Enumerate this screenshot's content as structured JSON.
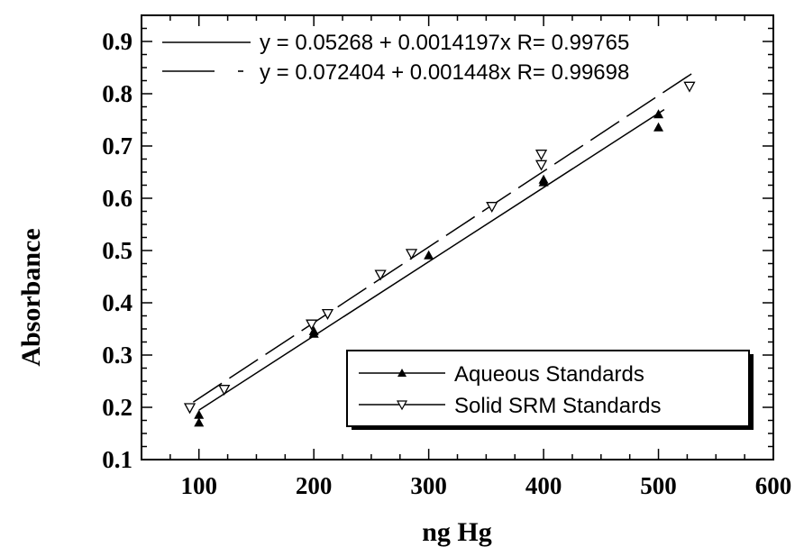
{
  "chart_data": {
    "type": "scatter",
    "xlabel": "ng Hg",
    "ylabel": "Absorbance",
    "xlim": [
      50,
      600
    ],
    "ylim": [
      0.1,
      0.95
    ],
    "x_ticks": [
      100,
      200,
      300,
      400,
      500,
      600
    ],
    "y_ticks": [
      0.1,
      0.2,
      0.3,
      0.4,
      0.5,
      0.6,
      0.7,
      0.8,
      0.9
    ],
    "x_tick_labels": [
      "100",
      "200",
      "300",
      "400",
      "500",
      "600"
    ],
    "y_tick_labels": [
      "0.1",
      "0.2",
      "0.3",
      "0.4",
      "0.5",
      "0.6",
      "0.7",
      "0.8",
      "0.9"
    ],
    "grid": false,
    "fits": [
      {
        "label": "y = 0.05268 + 0.0014197x R= 0.99765",
        "intercept": 0.05268,
        "slope": 0.0014197,
        "x_range": [
          100,
          505
        ],
        "dash": "solid"
      },
      {
        "label": "y = 0.072404 + 0.001448x R= 0.99698",
        "intercept": 0.072404,
        "slope": 0.001448,
        "x_range": [
          95,
          530
        ],
        "dash": "dashed"
      }
    ],
    "series": [
      {
        "name": "Aqueous Standards",
        "marker": "filled-triangle-up",
        "points": [
          {
            "x": 100,
            "y": 0.185
          },
          {
            "x": 100,
            "y": 0.17
          },
          {
            "x": 200,
            "y": 0.345
          },
          {
            "x": 200,
            "y": 0.34
          },
          {
            "x": 300,
            "y": 0.49
          },
          {
            "x": 400,
            "y": 0.635
          },
          {
            "x": 400,
            "y": 0.63
          },
          {
            "x": 500,
            "y": 0.76
          },
          {
            "x": 500,
            "y": 0.735
          }
        ]
      },
      {
        "name": "Solid SRM Standards",
        "marker": "open-triangle-down",
        "points": [
          {
            "x": 92,
            "y": 0.2
          },
          {
            "x": 122,
            "y": 0.235
          },
          {
            "x": 198,
            "y": 0.36
          },
          {
            "x": 212,
            "y": 0.38
          },
          {
            "x": 258,
            "y": 0.455
          },
          {
            "x": 285,
            "y": 0.495
          },
          {
            "x": 355,
            "y": 0.585
          },
          {
            "x": 398,
            "y": 0.685
          },
          {
            "x": 398,
            "y": 0.665
          },
          {
            "x": 527,
            "y": 0.815
          }
        ]
      }
    ],
    "legend_position": "bottom-right"
  }
}
